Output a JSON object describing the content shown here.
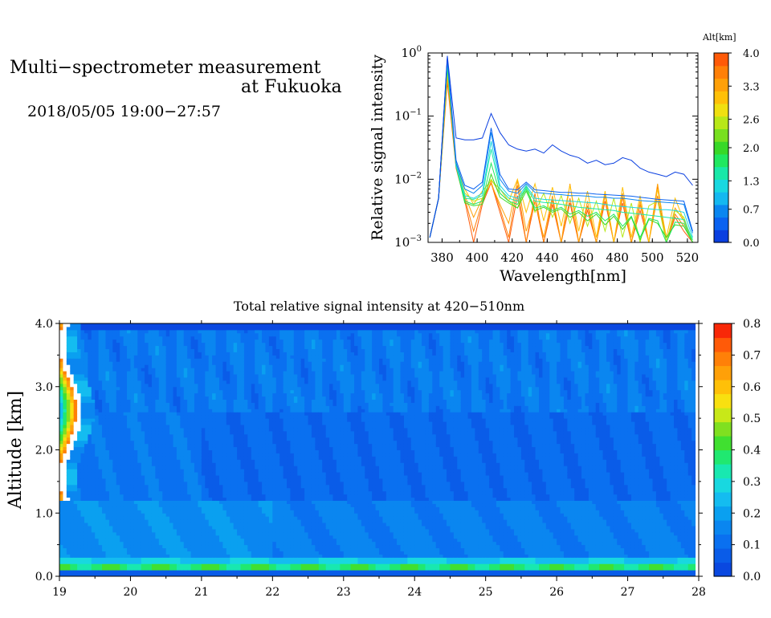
{
  "header": {
    "title_line1": "Multi−spectrometer measurement",
    "title_line2": "at Fukuoka",
    "datetime": "2018/05/05 19:00−27:57"
  },
  "chart_data": [
    {
      "type": "line",
      "title": "",
      "xlabel": "Wavelength[nm]",
      "ylabel": "Relative signal intensity",
      "xlim": [
        372,
        526
      ],
      "ylim": [
        0.001,
        1
      ],
      "yscale": "log",
      "x_ticks": [
        "380",
        "400",
        "420",
        "440",
        "460",
        "480",
        "500",
        "520"
      ],
      "y_ticks": [
        {
          "base": "10",
          "exp": "0"
        },
        {
          "base": "10",
          "exp": "−1"
        },
        {
          "base": "10",
          "exp": "−2"
        },
        {
          "base": "10",
          "exp": "−3"
        }
      ],
      "colorbar": {
        "label": "Alt[km]",
        "range": [
          0,
          4
        ],
        "tick_labels": [
          "4.0",
          "3.3",
          "2.6",
          "2.0",
          "1.3",
          "0.7",
          "0.0"
        ],
        "colors": [
          "#0a3fe0",
          "#0a62f0",
          "#0a86f0",
          "#14b8f0",
          "#18d8e0",
          "#18e8a8",
          "#20e860",
          "#38d828",
          "#78e020",
          "#b8e818",
          "#f0e010",
          "#ffc008",
          "#ffa008",
          "#ff8008",
          "#ff5a08"
        ]
      },
      "x": [
        373,
        378,
        383,
        388,
        393,
        398,
        403,
        408,
        413,
        418,
        423,
        428,
        433,
        438,
        443,
        448,
        453,
        458,
        463,
        468,
        473,
        478,
        483,
        488,
        493,
        498,
        503,
        508,
        513,
        518,
        523
      ],
      "series": [
        {
          "alt": 0.0,
          "color": "#0a3fe0",
          "values": [
            0.0012,
            0.005,
            0.9,
            0.045,
            0.042,
            0.042,
            0.045,
            0.11,
            0.055,
            0.035,
            0.03,
            0.028,
            0.03,
            0.026,
            0.035,
            0.028,
            0.024,
            0.022,
            0.018,
            0.02,
            0.017,
            0.018,
            0.022,
            0.02,
            0.015,
            0.013,
            0.012,
            0.011,
            0.013,
            0.012,
            0.008
          ]
        },
        {
          "alt": 0.3,
          "color": "#0a62f0",
          "values": [
            0.0012,
            0.005,
            0.85,
            0.02,
            0.008,
            0.007,
            0.009,
            0.065,
            0.012,
            0.007,
            0.0068,
            0.009,
            0.0068,
            0.0066,
            0.0064,
            0.0062,
            0.0062,
            0.006,
            0.006,
            0.0058,
            0.0057,
            0.0056,
            0.0055,
            0.0054,
            0.0052,
            0.005,
            0.0048,
            0.0047,
            0.0046,
            0.0045,
            0.0015
          ]
        },
        {
          "alt": 0.7,
          "color": "#0a86f0",
          "values": [
            0.0012,
            0.005,
            0.8,
            0.018,
            0.007,
            0.006,
            0.008,
            0.055,
            0.01,
            0.0065,
            0.006,
            0.0085,
            0.0062,
            0.006,
            0.0058,
            0.0057,
            0.0055,
            0.0055,
            0.0054,
            0.0052,
            0.0052,
            0.005,
            0.005,
            0.0048,
            0.0046,
            0.0045,
            0.0044,
            0.0043,
            0.0042,
            0.004,
            0.0014
          ]
        },
        {
          "alt": 1.0,
          "color": "#18d8e0",
          "values": [
            0.0012,
            0.005,
            0.75,
            0.017,
            0.0055,
            0.005,
            0.006,
            0.04,
            0.008,
            0.0055,
            0.005,
            0.008,
            0.005,
            0.0048,
            0.0047,
            0.0046,
            0.0045,
            0.0044,
            0.0043,
            0.0042,
            0.004,
            0.0038,
            0.0037,
            0.0036,
            0.0035,
            0.0034,
            0.0033,
            0.0033,
            0.0032,
            0.003,
            0.0012
          ]
        },
        {
          "alt": 1.3,
          "color": "#18e8a8",
          "values": [
            0.0012,
            0.005,
            0.7,
            0.016,
            0.005,
            0.0048,
            0.0055,
            0.03,
            0.007,
            0.005,
            0.0045,
            0.0075,
            0.0045,
            0.0043,
            0.0042,
            0.004,
            0.0038,
            0.0036,
            0.0035,
            0.0034,
            0.0033,
            0.0032,
            0.003,
            0.0029,
            0.0028,
            0.0027,
            0.0026,
            0.0025,
            0.0024,
            0.0023,
            0.0011
          ]
        },
        {
          "alt": 1.7,
          "color": "#20e860",
          "values": [
            0.0012,
            0.005,
            0.65,
            0.017,
            0.0045,
            0.004,
            0.0045,
            0.018,
            0.006,
            0.0045,
            0.004,
            0.007,
            0.0035,
            0.0038,
            0.0032,
            0.0036,
            0.0028,
            0.0032,
            0.0026,
            0.003,
            0.0022,
            0.0028,
            0.0018,
            0.0026,
            0.0012,
            0.0024,
            0.0022,
            0.001,
            0.0021,
            0.002,
            0.001
          ]
        },
        {
          "alt": 2.0,
          "color": "#38d828",
          "values": [
            0.0012,
            0.005,
            0.6,
            0.016,
            0.0042,
            0.0038,
            0.004,
            0.012,
            0.0052,
            0.0042,
            0.0035,
            0.0065,
            0.0032,
            0.0036,
            0.003,
            0.0034,
            0.0025,
            0.003,
            0.0022,
            0.0028,
            0.0019,
            0.0026,
            0.0016,
            0.0025,
            0.0011,
            0.0023,
            0.002,
            0.0012,
            0.0019,
            0.0018,
            0.001
          ]
        },
        {
          "alt": 2.6,
          "color": "#b8e818",
          "values": [
            0.0012,
            0.005,
            0.55,
            0.018,
            0.006,
            0.0045,
            0.005,
            0.01,
            0.006,
            0.0045,
            0.0035,
            0.008,
            0.003,
            0.006,
            0.0025,
            0.0055,
            0.002,
            0.005,
            0.0018,
            0.0045,
            0.0015,
            0.005,
            0.0012,
            0.0042,
            0.001,
            0.0038,
            0.0045,
            0.001,
            0.0032,
            0.0025,
            0.001
          ]
        },
        {
          "alt": 3.0,
          "color": "#ffc008",
          "values": [
            0.0012,
            0.005,
            0.5,
            0.018,
            0.007,
            0.004,
            0.0065,
            0.0095,
            0.007,
            0.0045,
            0.01,
            0.003,
            0.0085,
            0.0022,
            0.0075,
            0.0018,
            0.008,
            0.0015,
            0.0065,
            0.0012,
            0.0065,
            0.001,
            0.0075,
            0.0012,
            0.0055,
            0.001,
            0.007,
            0.0012,
            0.005,
            0.0022,
            0.001
          ]
        },
        {
          "alt": 3.3,
          "color": "#ffa008",
          "values": [
            0.0012,
            0.005,
            0.45,
            0.017,
            0.0055,
            0.0025,
            0.005,
            0.0085,
            0.004,
            0.002,
            0.0095,
            0.0015,
            0.0045,
            0.0012,
            0.0055,
            0.001,
            0.0085,
            0.001,
            0.0045,
            0.001,
            0.0055,
            0.001,
            0.006,
            0.001,
            0.0045,
            0.001,
            0.0085,
            0.001,
            0.0035,
            0.0022,
            0.001
          ]
        },
        {
          "alt": 3.7,
          "color": "#ff8008",
          "values": [
            0.0012,
            0.005,
            0.4,
            0.016,
            0.005,
            0.0015,
            0.0045,
            0.009,
            0.0035,
            0.0012,
            0.008,
            0.001,
            0.006,
            0.001,
            0.0048,
            0.001,
            0.005,
            0.001,
            0.0038,
            0.001,
            0.0058,
            0.001,
            0.0052,
            0.001,
            0.004,
            0.001,
            0.0055,
            0.001,
            0.0028,
            0.0018,
            0.001
          ]
        },
        {
          "alt": 4.0,
          "color": "#ff5a08",
          "values": [
            0.0012,
            0.005,
            0.35,
            0.015,
            0.0045,
            0.001,
            0.004,
            0.0088,
            0.003,
            0.001,
            0.0055,
            0.001,
            0.0045,
            0.001,
            0.004,
            0.001,
            0.0042,
            0.001,
            0.0032,
            0.001,
            0.0045,
            0.001,
            0.0042,
            0.001,
            0.0032,
            0.001,
            0.0075,
            0.001,
            0.0025,
            0.0015,
            0.001
          ]
        }
      ]
    },
    {
      "type": "heatmap",
      "title": "Total relative signal intensity at 420−510nm",
      "xlabel": "",
      "ylabel": "Altitude [km]",
      "xlim": [
        19,
        28
      ],
      "ylim": [
        0,
        4
      ],
      "x_ticks": [
        "19",
        "20",
        "21",
        "22",
        "23",
        "24",
        "25",
        "26",
        "27",
        "28"
      ],
      "y_ticks": [
        "0.0",
        "1.0",
        "2.0",
        "3.0",
        "4.0"
      ],
      "data_end_hour": 27.95,
      "colorbar": {
        "range": [
          0,
          0.8
        ],
        "tick_labels": [
          "0.8",
          "0.7",
          "0.6",
          "0.5",
          "0.4",
          "0.3",
          "0.2",
          "0.1",
          "0.0"
        ],
        "colors": [
          "#0a48e0",
          "#0a5ce8",
          "#0a70f0",
          "#0a86f0",
          "#0aa0f0",
          "#14bcf0",
          "#18d8e0",
          "#18e8b0",
          "#20e870",
          "#40e030",
          "#80e020",
          "#c8e818",
          "#f8e010",
          "#ffc008",
          "#ffa008",
          "#ff8008",
          "#ff5a08",
          "#f82808"
        ]
      },
      "values_description_levels": {
        "surface_band": {
          "alt_range": [
            0.12,
            0.32
          ],
          "value": 0.38
        },
        "lower_layer": {
          "alt_range": [
            0.32,
            1.2
          ],
          "value": 0.17
        },
        "middle_layer": {
          "alt_range": [
            1.2,
            2.6
          ],
          "value": 0.1
        },
        "upper_layer": {
          "alt_range": [
            2.6,
            4.0
          ],
          "value": 0.13
        },
        "cloud_edge": {
          "time_range": [
            19.0,
            19.5
          ],
          "value": 0.7
        }
      }
    }
  ]
}
